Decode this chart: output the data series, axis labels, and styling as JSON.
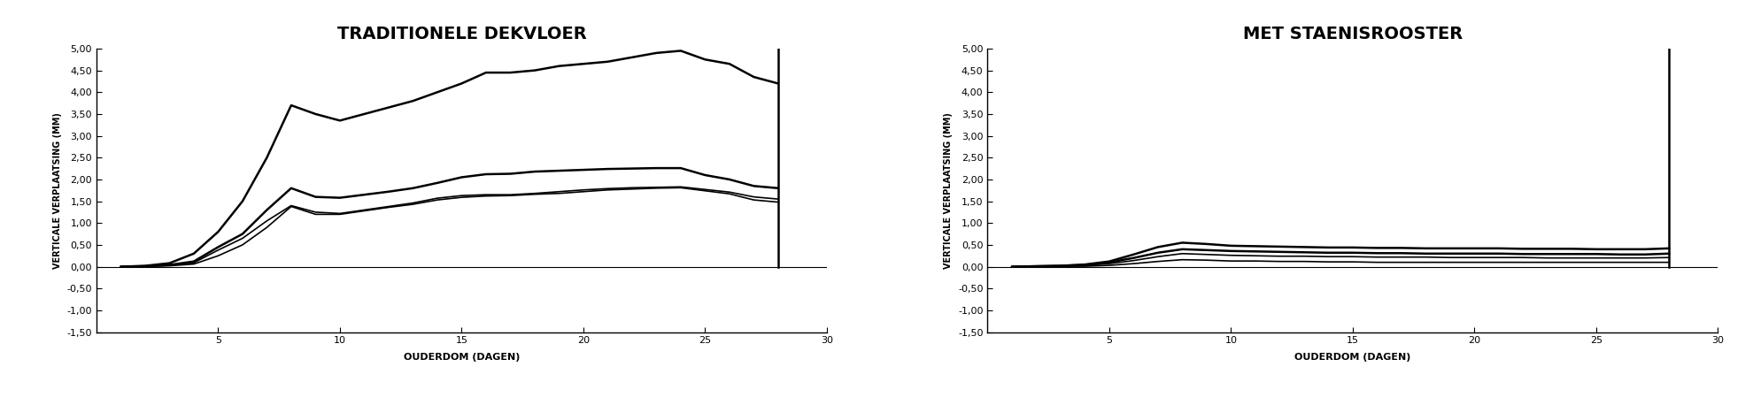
{
  "title_left": "TRADITIONELE DEKVLOER",
  "title_right": "MET STAENISROOSTER",
  "ylabel": "VERTICALE VERPLAATSING (MM)",
  "xlabel": "OUDERDOM (DAGEN)",
  "ylim": [
    -1.5,
    5.0
  ],
  "xlim": [
    0,
    30
  ],
  "yticks": [
    -1.5,
    -1.0,
    -0.5,
    0.0,
    0.5,
    1.0,
    1.5,
    2.0,
    2.5,
    3.0,
    3.5,
    4.0,
    4.5,
    5.0
  ],
  "xticks": [
    5,
    10,
    15,
    20,
    25,
    30
  ],
  "vertical_line_x": 28,
  "vertical_line_y_top": 5.0,
  "line_color": "#000000",
  "background_color": "#ffffff",
  "left_lines": [
    [
      0,
      0.02,
      0.08,
      0.3,
      0.8,
      1.5,
      2.5,
      3.7,
      3.5,
      3.35,
      3.5,
      3.65,
      3.8,
      4.0,
      4.2,
      4.45,
      4.45,
      4.5,
      4.6,
      4.65,
      4.7,
      4.8,
      4.9,
      4.95,
      4.75,
      4.65,
      4.35,
      4.2
    ],
    [
      0,
      0.01,
      0.04,
      0.12,
      0.45,
      0.75,
      1.3,
      1.8,
      1.6,
      1.58,
      1.65,
      1.72,
      1.8,
      1.92,
      2.05,
      2.12,
      2.13,
      2.18,
      2.2,
      2.22,
      2.24,
      2.25,
      2.26,
      2.26,
      2.1,
      2.0,
      1.85,
      1.8
    ],
    [
      0,
      0.01,
      0.03,
      0.09,
      0.38,
      0.65,
      1.05,
      1.4,
      1.25,
      1.22,
      1.3,
      1.38,
      1.46,
      1.57,
      1.63,
      1.65,
      1.65,
      1.68,
      1.72,
      1.76,
      1.79,
      1.81,
      1.82,
      1.83,
      1.77,
      1.71,
      1.6,
      1.55
    ],
    [
      0,
      0.01,
      0.02,
      0.06,
      0.25,
      0.5,
      0.9,
      1.38,
      1.2,
      1.2,
      1.28,
      1.36,
      1.43,
      1.53,
      1.59,
      1.62,
      1.63,
      1.66,
      1.68,
      1.72,
      1.76,
      1.78,
      1.8,
      1.81,
      1.74,
      1.67,
      1.53,
      1.48
    ]
  ],
  "right_lines": [
    [
      0,
      0.01,
      0.02,
      0.05,
      0.12,
      0.28,
      0.45,
      0.55,
      0.52,
      0.48,
      0.47,
      0.46,
      0.45,
      0.44,
      0.44,
      0.43,
      0.43,
      0.42,
      0.42,
      0.42,
      0.42,
      0.41,
      0.41,
      0.41,
      0.4,
      0.4,
      0.4,
      0.42
    ],
    [
      0,
      0.01,
      0.02,
      0.04,
      0.1,
      0.2,
      0.32,
      0.4,
      0.38,
      0.36,
      0.35,
      0.34,
      0.33,
      0.32,
      0.32,
      0.31,
      0.31,
      0.3,
      0.3,
      0.3,
      0.3,
      0.29,
      0.29,
      0.29,
      0.29,
      0.28,
      0.28,
      0.3
    ],
    [
      0,
      0.01,
      0.01,
      0.03,
      0.07,
      0.14,
      0.23,
      0.3,
      0.28,
      0.26,
      0.25,
      0.24,
      0.24,
      0.23,
      0.23,
      0.22,
      0.22,
      0.22,
      0.21,
      0.21,
      0.21,
      0.21,
      0.2,
      0.2,
      0.2,
      0.2,
      0.2,
      0.21
    ],
    [
      0,
      0.0,
      0.01,
      0.01,
      0.03,
      0.07,
      0.12,
      0.16,
      0.15,
      0.13,
      0.13,
      0.12,
      0.12,
      0.11,
      0.11,
      0.1,
      0.1,
      0.1,
      0.1,
      0.1,
      0.1,
      0.1,
      0.1,
      0.1,
      0.1,
      0.1,
      0.1,
      0.1
    ]
  ],
  "x_days": [
    1,
    2,
    3,
    4,
    5,
    6,
    7,
    8,
    9,
    10,
    11,
    12,
    13,
    14,
    15,
    16,
    17,
    18,
    19,
    20,
    21,
    22,
    23,
    24,
    25,
    26,
    27,
    28
  ],
  "lw_thick": 1.8,
  "lw_thin": 1.2,
  "title_fontsize": 14,
  "label_fontsize": 8,
  "tick_fontsize": 8,
  "ylabel_fontsize": 7
}
